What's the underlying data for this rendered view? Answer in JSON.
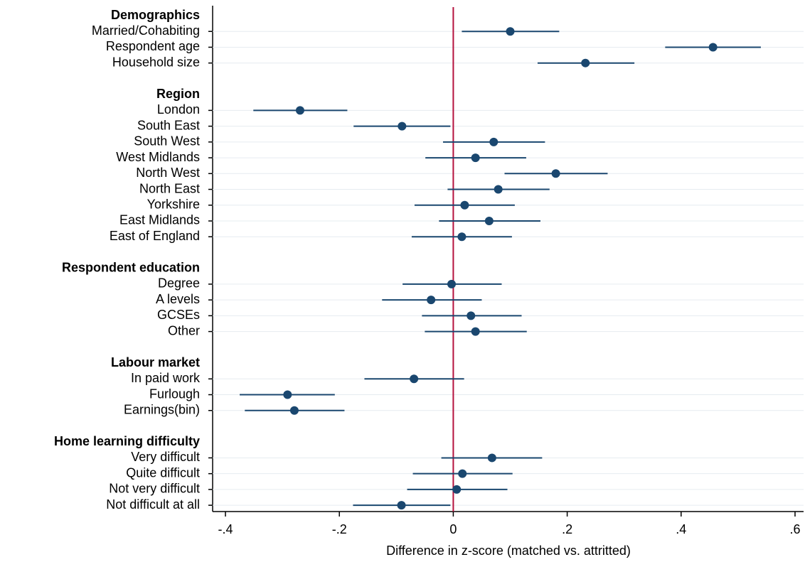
{
  "chart_data": {
    "type": "coefplot",
    "x_label": "Difference in z-score (matched vs. attritted)",
    "xlim": [
      -0.4225,
      0.615
    ],
    "xticks": [
      {
        "value": -0.4,
        "label": "-.4"
      },
      {
        "value": -0.2,
        "label": "-.2"
      },
      0,
      {
        "value": 0.2,
        "label": ".2"
      },
      {
        "value": 0.4,
        "label": ".4"
      },
      {
        "value": 0.6,
        "label": ".6"
      }
    ],
    "refline": 0,
    "refline_color": "#b5123e",
    "color": "#1a476f",
    "grid": true,
    "groups": [
      {
        "name": "Demographics",
        "categories": [
          "Married/Cohabiting",
          "Respondent age",
          "Household size"
        ],
        "values": [
          0.1,
          0.456,
          0.232
        ],
        "lower": [
          0.015,
          0.372,
          0.148
        ],
        "upper": [
          0.186,
          0.54,
          0.318
        ]
      },
      {
        "name": "Region",
        "categories": [
          "London",
          "South East",
          "South West",
          "West Midlands",
          "North West",
          "North East",
          "Yorkshire",
          "East Midlands",
          "East of England"
        ],
        "values": [
          -0.269,
          -0.09,
          0.071,
          0.039,
          0.18,
          0.079,
          0.02,
          0.063,
          0.015
        ],
        "lower": [
          -0.351,
          -0.175,
          -0.018,
          -0.049,
          0.09,
          -0.01,
          -0.068,
          -0.025,
          -0.073
        ],
        "upper": [
          -0.186,
          -0.005,
          0.161,
          0.128,
          0.271,
          0.169,
          0.108,
          0.153,
          0.103
        ]
      },
      {
        "name": "Respondent education",
        "categories": [
          "Degree",
          "A levels",
          "GCSEs",
          "Other"
        ],
        "values": [
          -0.003,
          -0.039,
          0.031,
          0.039
        ],
        "lower": [
          -0.089,
          -0.125,
          -0.055,
          -0.05
        ],
        "upper": [
          0.085,
          0.05,
          0.12,
          0.129
        ]
      },
      {
        "name": "Labour market",
        "categories": [
          "In paid work",
          "Furlough",
          "Earnings(bin)"
        ],
        "values": [
          -0.069,
          -0.291,
          -0.279
        ],
        "lower": [
          -0.156,
          -0.375,
          -0.366
        ],
        "upper": [
          0.019,
          -0.208,
          -0.191
        ]
      },
      {
        "name": "Home learning difficulty",
        "categories": [
          "Very difficult",
          "Quite difficult",
          "Not very difficult",
          "Not difficult at all"
        ],
        "values": [
          0.068,
          0.016,
          0.006,
          -0.091
        ],
        "lower": [
          -0.021,
          -0.071,
          -0.081,
          -0.176
        ],
        "upper": [
          0.156,
          0.104,
          0.095,
          -0.005
        ]
      }
    ]
  }
}
